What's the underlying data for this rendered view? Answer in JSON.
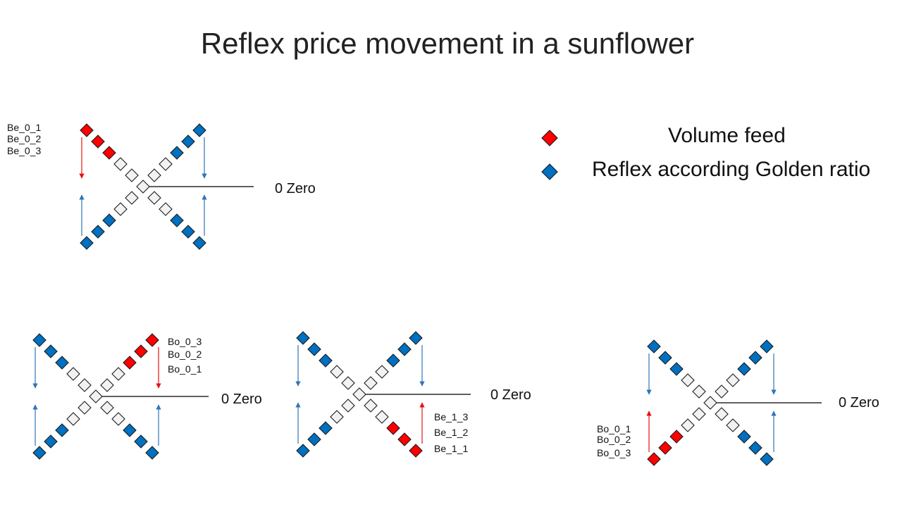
{
  "title": "Reflex price movement in a sunflower",
  "legend": {
    "items": [
      {
        "label": "Volume feed",
        "color": "#ff0000",
        "icon": "red-diamond-icon"
      },
      {
        "label": "Reflex according Golden ratio",
        "color": "#0070c0",
        "icon": "blue-diamond-icon"
      }
    ]
  },
  "colors": {
    "red": "#ff0000",
    "blue": "#0070c0",
    "white": "#f2f2f2",
    "outline": "#1a1a1a",
    "arrow_red": "#e81010",
    "arrow_blue": "#2e75b6",
    "line": "#000000"
  },
  "zero_label": "0 Zero",
  "figures": [
    {
      "id": "be-0",
      "highlight": "top-left",
      "labels": [
        "Be_0_1",
        "Be_0_2",
        "Be_0_3"
      ],
      "arrows": {
        "top-left": "red",
        "top-right": "blue",
        "bottom-left": "blue",
        "bottom-right": "blue"
      }
    },
    {
      "id": "bo-0-top",
      "highlight": "top-right",
      "labels": [
        "Bo_0_3",
        "Bo_0_2",
        "Bo_0_1"
      ],
      "arrows": {
        "top-left": "blue",
        "top-right": "red",
        "bottom-left": "blue",
        "bottom-right": "blue"
      }
    },
    {
      "id": "be-1",
      "highlight": "bottom-right",
      "labels": [
        "Be_1_3",
        "Be_1_2",
        "Be_1_1"
      ],
      "arrows": {
        "top-left": "blue",
        "top-right": "blue",
        "bottom-left": "blue",
        "bottom-right": "red"
      }
    },
    {
      "id": "bo-0-bottom",
      "highlight": "bottom-left",
      "labels": [
        "Bo_0_1",
        "Bo_0_2",
        "Bo_0_3"
      ],
      "arrows": {
        "top-left": "blue",
        "top-right": "blue",
        "bottom-left": "red",
        "bottom-right": "blue"
      }
    }
  ]
}
